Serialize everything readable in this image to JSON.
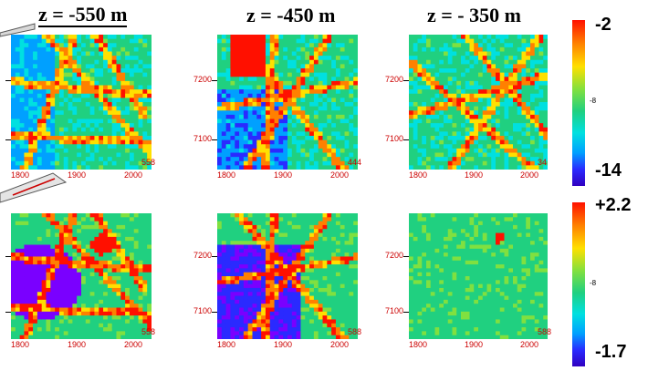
{
  "titles": [
    "z = -550 m",
    "z = -450 m",
    "z = - 350 m"
  ],
  "x_ticks": [
    "1800",
    "1900",
    "2000"
  ],
  "y_ticks": [
    "7200",
    "7100"
  ],
  "panel_corner_labels": {
    "top": [
      "558",
      "444",
      "34"
    ],
    "bottom": [
      "558",
      "588",
      "588"
    ]
  },
  "colorbars": [
    {
      "max_label": "-2",
      "mid_label": "-8",
      "min_label": "-14"
    },
    {
      "max_label": "+2.2",
      "mid_label": "-8",
      "min_label": "-1.7"
    }
  ],
  "colormap": [
    "#7a00ff",
    "#2a2aff",
    "#00a0ff",
    "#00e0e0",
    "#20d080",
    "#80e040",
    "#ffe000",
    "#ff8000",
    "#ff1000"
  ]
}
